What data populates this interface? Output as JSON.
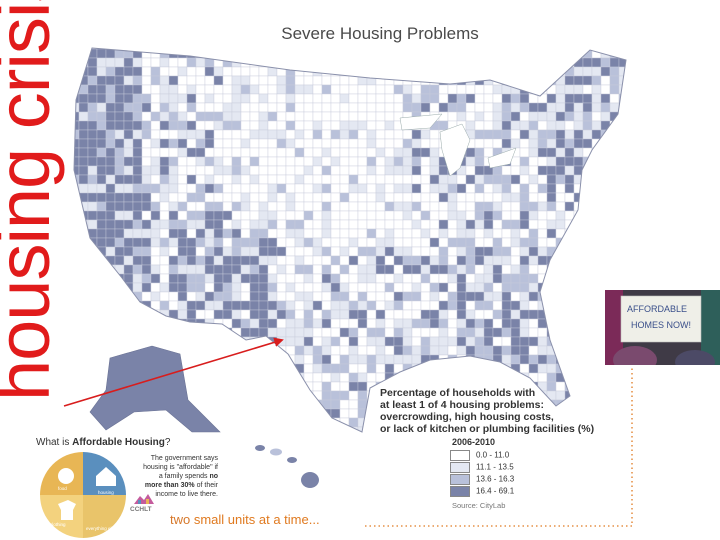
{
  "map": {
    "title": "Severe Housing Problems",
    "vertical_title": "housing crisis",
    "legend": {
      "heading_lines": [
        "Percentage of households with",
        "at least 1 of 4 housing problems:",
        "overcrowding, high housing costs,",
        "or lack of kitchen or plumbing facilities (%)"
      ],
      "period": "2006-2010",
      "classes": [
        {
          "range": "0.0 - 11.0",
          "color": "#ffffff"
        },
        {
          "range": "11.1 - 13.5",
          "color": "#e4e8f2"
        },
        {
          "range": "13.6 - 16.3",
          "color": "#b9c1da"
        },
        {
          "range": "16.4 - 69.1",
          "color": "#7a83a8"
        }
      ],
      "source": "Source: CityLab"
    },
    "colors": {
      "high": "#7a83a8",
      "mid": "#b9c1da",
      "low": "#e4e8f2",
      "none": "#ffffff",
      "title_red": "#e11b1b",
      "tagline_orange": "#d6782b"
    }
  },
  "affordable": {
    "heading_prefix": "What is ",
    "heading_bold": "Affordable Housing",
    "heading_suffix": "?",
    "body_1": "The government says housing is \"affordable\" if a family spends ",
    "body_bold": "no more than 30%",
    "body_2": " of their income to live there.",
    "pie_labels": [
      "food",
      "housing",
      "clothing",
      "everything else"
    ],
    "pie_colors": [
      "#e8b655",
      "#5a8fbe",
      "#f3d27e",
      "#e9c46a"
    ],
    "logo_text": "CCHLT"
  },
  "tagline": {
    "prefix": "two ",
    "highlight": "small units at a time..."
  },
  "photo": {
    "sign_lines": [
      "AFFORDABLE",
      "HOMES NOW!"
    ]
  }
}
